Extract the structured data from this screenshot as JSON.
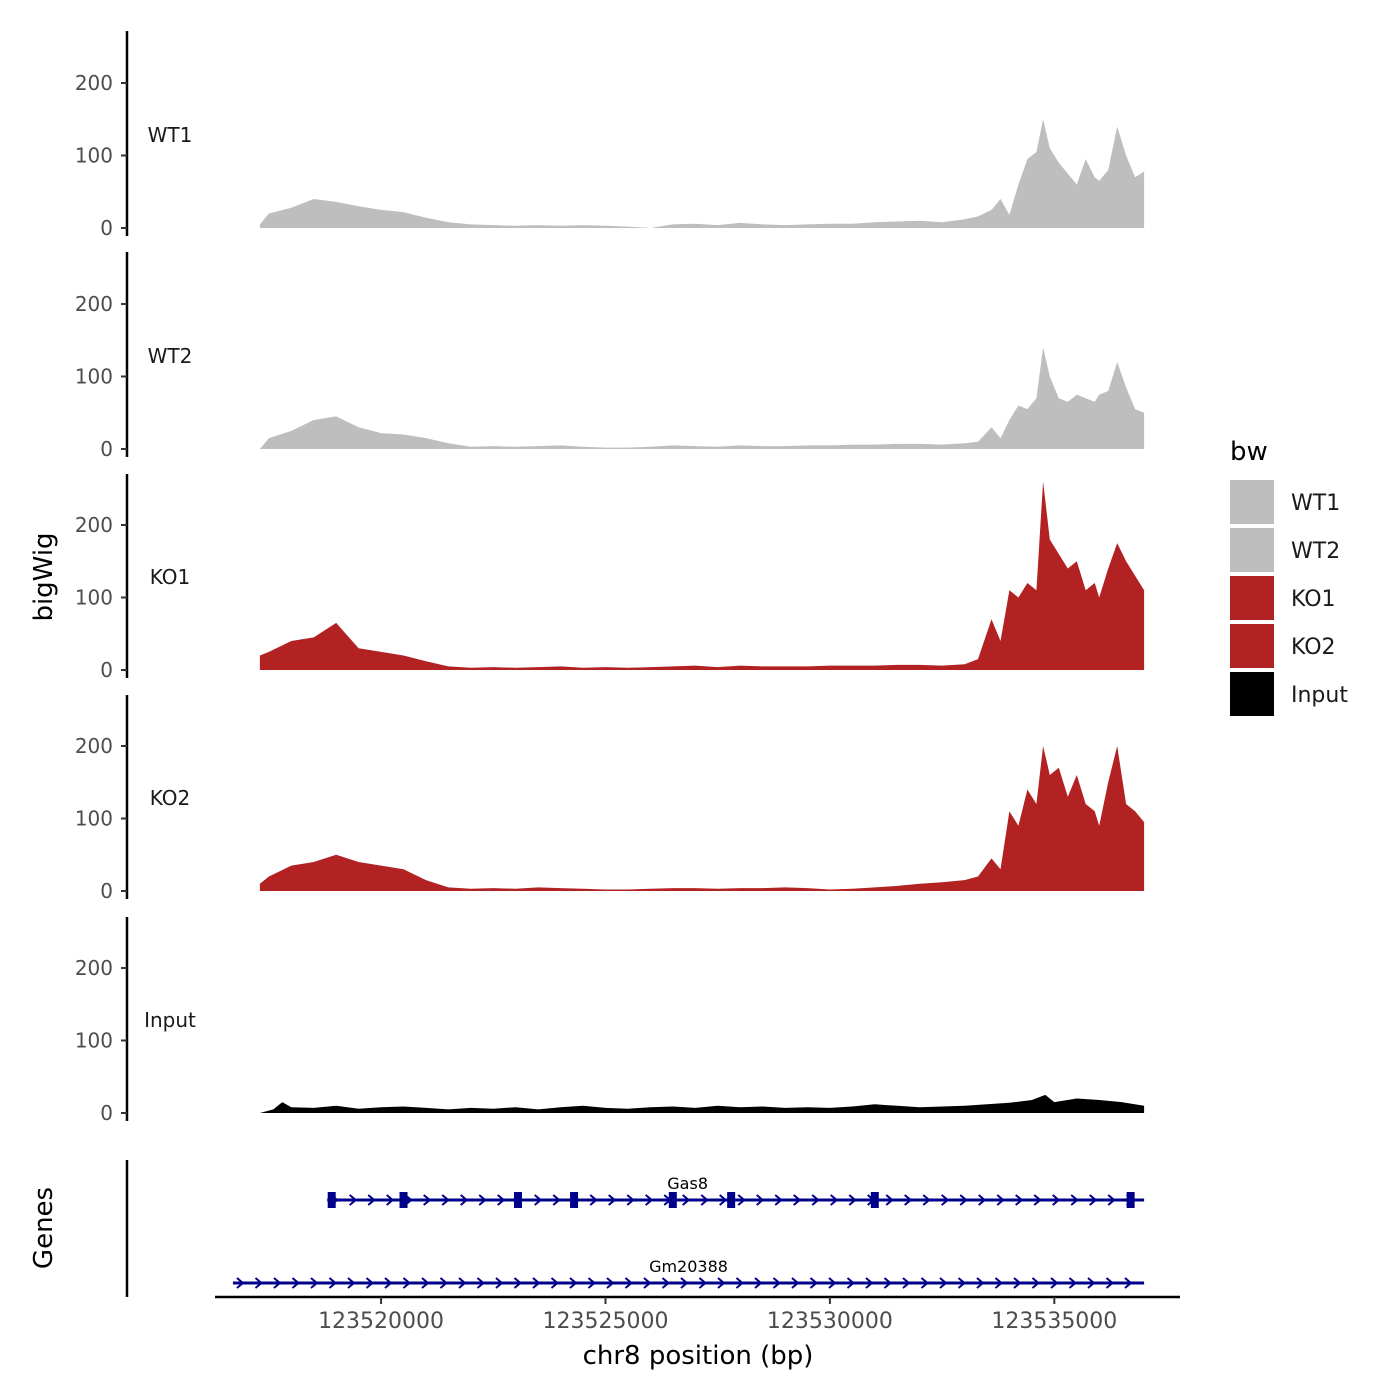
{
  "chart_data": {
    "type": "area",
    "chromosome": "chr8",
    "xlabel": "chr8 position (bp)",
    "ylabel": "bigWig",
    "genes_label": "Genes",
    "xlim": [
      123516300,
      123537800
    ],
    "x_ticks": [
      123520000,
      123525000,
      123530000,
      123535000
    ],
    "x_tick_labels": [
      "123520000",
      "123525000",
      "123530000",
      "123535000"
    ],
    "ylim": [
      0,
      275
    ],
    "y_ticks": [
      0,
      100,
      200
    ],
    "y_tick_labels": [
      "0",
      "100",
      "200"
    ],
    "grid": false,
    "legend": {
      "title": "bw",
      "position": "right",
      "entries": [
        {
          "label": "WT1",
          "color": "#bebebe"
        },
        {
          "label": "WT2",
          "color": "#bebebe"
        },
        {
          "label": "KO1",
          "color": "#b22222"
        },
        {
          "label": "KO2",
          "color": "#b22222"
        },
        {
          "label": "Input",
          "color": "#000000"
        }
      ]
    },
    "series": [
      {
        "name": "WT1",
        "color": "#bebebe",
        "x": [
          123517300,
          123517500,
          123518000,
          123518500,
          123519000,
          123519500,
          123520000,
          123520500,
          123521000,
          123521500,
          123522000,
          123522500,
          123523000,
          123523500,
          123524000,
          123524500,
          123525000,
          123525500,
          123526000,
          123526500,
          123527000,
          123527500,
          123528000,
          123528500,
          123529000,
          123529500,
          123530000,
          123530500,
          123531000,
          123531500,
          123532000,
          123532500,
          123533000,
          123533300,
          123533600,
          123533800,
          123534000,
          123534200,
          123534400,
          123534600,
          123534750,
          123534900,
          123535100,
          123535300,
          123535500,
          123535700,
          123535900,
          123536000,
          123536200,
          123536400,
          123536600,
          123536800,
          123537000
        ],
        "values": [
          5,
          20,
          28,
          40,
          36,
          30,
          25,
          22,
          14,
          8,
          5,
          4,
          3,
          4,
          3,
          4,
          3,
          2,
          0,
          5,
          6,
          4,
          7,
          5,
          4,
          5,
          6,
          6,
          8,
          9,
          10,
          8,
          12,
          16,
          25,
          40,
          18,
          60,
          95,
          105,
          150,
          110,
          90,
          75,
          60,
          95,
          70,
          65,
          80,
          140,
          100,
          70,
          78
        ]
      },
      {
        "name": "WT2",
        "color": "#bebebe",
        "x": [
          123517300,
          123517500,
          123518000,
          123518500,
          123519000,
          123519500,
          123520000,
          123520500,
          123521000,
          123521500,
          123522000,
          123522500,
          123523000,
          123523500,
          123524000,
          123524500,
          123525000,
          123525500,
          123526000,
          123526500,
          123527000,
          123527500,
          123528000,
          123528500,
          123529000,
          123529500,
          123530000,
          123530500,
          123531000,
          123531500,
          123532000,
          123532500,
          123533000,
          123533300,
          123533600,
          123533800,
          123534000,
          123534200,
          123534400,
          123534600,
          123534750,
          123534900,
          123535100,
          123535300,
          123535500,
          123535700,
          123535900,
          123536000,
          123536200,
          123536400,
          123536600,
          123536800,
          123537000
        ],
        "values": [
          0,
          15,
          25,
          40,
          45,
          30,
          22,
          20,
          15,
          8,
          3,
          4,
          3,
          4,
          5,
          3,
          2,
          2,
          3,
          5,
          4,
          3,
          5,
          4,
          4,
          5,
          5,
          6,
          6,
          7,
          7,
          6,
          8,
          10,
          30,
          15,
          40,
          60,
          55,
          70,
          140,
          100,
          70,
          65,
          75,
          70,
          65,
          75,
          80,
          120,
          85,
          55,
          50
        ]
      },
      {
        "name": "KO1",
        "color": "#b22222",
        "x": [
          123517300,
          123517500,
          123518000,
          123518500,
          123519000,
          123519500,
          123520000,
          123520500,
          123521000,
          123521500,
          123522000,
          123522500,
          123523000,
          123523500,
          123524000,
          123524500,
          123525000,
          123525500,
          123526000,
          123526500,
          123527000,
          123527500,
          123528000,
          123528500,
          123529000,
          123529500,
          123530000,
          123530500,
          123531000,
          123531500,
          123532000,
          123532500,
          123533000,
          123533300,
          123533600,
          123533800,
          123534000,
          123534200,
          123534400,
          123534600,
          123534750,
          123534900,
          123535100,
          123535300,
          123535500,
          123535700,
          123535900,
          123536000,
          123536200,
          123536400,
          123536600,
          123536800,
          123537000
        ],
        "values": [
          20,
          25,
          40,
          45,
          65,
          30,
          25,
          20,
          12,
          5,
          3,
          4,
          3,
          4,
          5,
          3,
          4,
          3,
          4,
          5,
          6,
          4,
          6,
          5,
          5,
          5,
          6,
          6,
          6,
          7,
          7,
          6,
          8,
          15,
          70,
          40,
          110,
          100,
          120,
          110,
          260,
          180,
          160,
          140,
          150,
          110,
          120,
          100,
          140,
          175,
          150,
          130,
          110
        ]
      },
      {
        "name": "KO2",
        "color": "#b22222",
        "x": [
          123517300,
          123517500,
          123518000,
          123518500,
          123519000,
          123519500,
          123520000,
          123520500,
          123521000,
          123521500,
          123522000,
          123522500,
          123523000,
          123523500,
          123524000,
          123524500,
          123525000,
          123525500,
          123526000,
          123526500,
          123527000,
          123527500,
          123528000,
          123528500,
          123529000,
          123529500,
          123530000,
          123530500,
          123531000,
          123531500,
          123532000,
          123532500,
          123533000,
          123533300,
          123533600,
          123533800,
          123534000,
          123534200,
          123534400,
          123534600,
          123534750,
          123534900,
          123535100,
          123535300,
          123535500,
          123535700,
          123535900,
          123536000,
          123536200,
          123536400,
          123536600,
          123536800,
          123537000
        ],
        "values": [
          10,
          20,
          35,
          40,
          50,
          40,
          35,
          30,
          15,
          5,
          3,
          4,
          3,
          5,
          4,
          3,
          2,
          2,
          3,
          4,
          4,
          3,
          4,
          4,
          5,
          4,
          2,
          3,
          5,
          7,
          10,
          12,
          15,
          20,
          45,
          30,
          110,
          90,
          140,
          120,
          200,
          160,
          170,
          130,
          160,
          120,
          110,
          90,
          150,
          200,
          120,
          110,
          95
        ]
      },
      {
        "name": "Input",
        "color": "#000000",
        "x": [
          123517300,
          123517600,
          123517800,
          123518000,
          123518500,
          123519000,
          123519500,
          123520000,
          123520500,
          123521000,
          123521500,
          123522000,
          123522500,
          123523000,
          123523500,
          123524000,
          123524500,
          123525000,
          123525500,
          123526000,
          123526500,
          123527000,
          123527500,
          123528000,
          123528500,
          123529000,
          123529500,
          123530000,
          123530500,
          123531000,
          123531500,
          123532000,
          123532500,
          123533000,
          123533500,
          123534000,
          123534500,
          123534800,
          123535000,
          123535500,
          123536000,
          123536500,
          123537000
        ],
        "values": [
          0,
          5,
          15,
          8,
          7,
          10,
          6,
          8,
          9,
          7,
          5,
          7,
          6,
          8,
          5,
          8,
          10,
          7,
          6,
          8,
          9,
          7,
          10,
          8,
          9,
          7,
          8,
          7,
          9,
          12,
          10,
          8,
          9,
          10,
          12,
          14,
          18,
          25,
          15,
          20,
          18,
          15,
          10
        ]
      }
    ],
    "genes": [
      {
        "name": "Gas8",
        "start": 123518800,
        "end": 123537000,
        "strand": "+",
        "exons": [
          123518900,
          123520500,
          123523050,
          123524300,
          123526500,
          123527800,
          123531000,
          123536700
        ]
      },
      {
        "name": "Gm20388",
        "start": 123516700,
        "end": 123537000,
        "strand": "+",
        "exons": []
      }
    ]
  }
}
